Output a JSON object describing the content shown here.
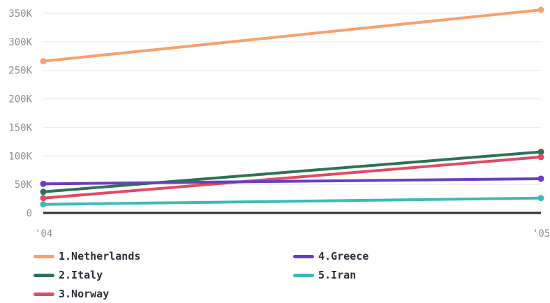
{
  "chart_data": {
    "type": "line",
    "x": [
      "'04",
      "'05"
    ],
    "y_ticks": [
      "0",
      "50K",
      "100K",
      "150K",
      "200K",
      "250K",
      "300K",
      "350K"
    ],
    "ylim": [
      0,
      350000
    ],
    "grid": true,
    "legend_position": "bottom",
    "series": [
      {
        "name": "1.Netherlands",
        "color": "#f4a26f",
        "values": [
          266000,
          356000
        ]
      },
      {
        "name": "2.Italy",
        "color": "#2e7156",
        "values": [
          37000,
          107000
        ]
      },
      {
        "name": "3.Norway",
        "color": "#e24a62",
        "values": [
          26000,
          98000
        ]
      },
      {
        "name": "4.Greece",
        "color": "#6a3dc4",
        "values": [
          51000,
          60000
        ]
      },
      {
        "name": "5.Iran",
        "color": "#3dbab5",
        "values": [
          15000,
          26000
        ]
      }
    ]
  }
}
